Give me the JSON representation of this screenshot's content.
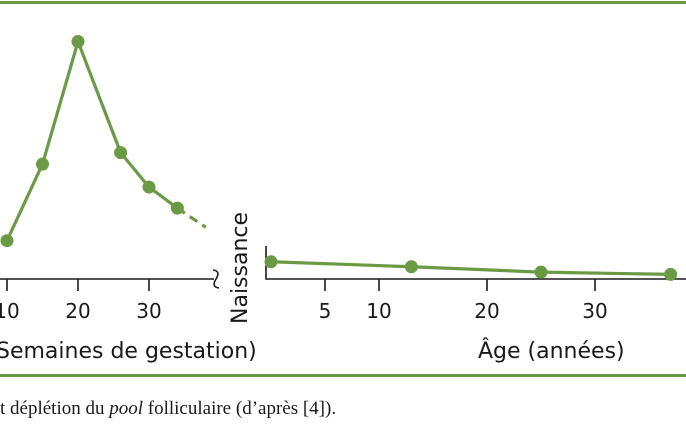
{
  "chart_data": [
    {
      "type": "line",
      "xlabel": "Semaines de gestation)",
      "xticks": [
        10,
        20,
        30
      ],
      "x": [
        10,
        15,
        20,
        26,
        30,
        34
      ],
      "y": [
        1.0,
        3.0,
        6.2,
        3.3,
        2.4,
        1.85
      ],
      "extension": {
        "x": [
          34,
          38
        ],
        "y": [
          1.85,
          1.35
        ],
        "style": "dashed"
      },
      "color": "#6b9a45"
    },
    {
      "type": "line",
      "xlabel": "Âge (années)",
      "xticks": [
        5,
        10,
        20,
        30
      ],
      "x": [
        0,
        13,
        25,
        37
      ],
      "y": [
        0.45,
        0.32,
        0.18,
        0.12
      ],
      "color": "#6b9a45"
    }
  ],
  "divider_label": "Naissance",
  "caption": {
    "before": "t déplétion du ",
    "italic": "pool",
    "after": " folliculaire (d’après [4])."
  },
  "colors": {
    "accent": "#6b9a45",
    "text": "#1a1a1a"
  }
}
